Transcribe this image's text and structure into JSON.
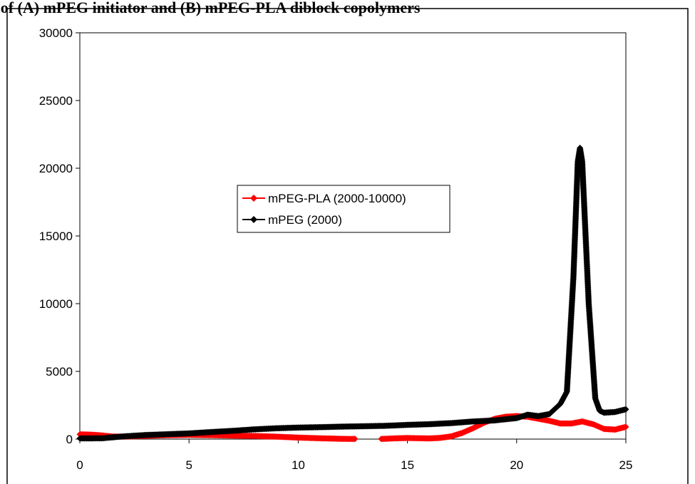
{
  "chart_data": {
    "type": "line",
    "title": "sis of (A) mPEG initiator and (B) mPEG-PLA diblock copolymers",
    "xlabel": "",
    "ylabel": "",
    "xlim": [
      0,
      25
    ],
    "ylim": [
      0,
      30000
    ],
    "xticks": [
      "0",
      "5",
      "10",
      "15",
      "20",
      "25"
    ],
    "yticks": [
      "0",
      "5000",
      "10000",
      "15000",
      "20000",
      "25000",
      "30000"
    ],
    "grid": false,
    "legend_position": "center",
    "series": [
      {
        "name": "mPEG-PLA (2000-10000)",
        "color": "#ff0000",
        "points": [
          [
            0,
            350
          ],
          [
            0.5,
            330
          ],
          [
            1,
            270
          ],
          [
            1.5,
            190
          ],
          [
            2,
            180
          ],
          [
            3,
            240
          ],
          [
            4,
            290
          ],
          [
            5,
            310
          ],
          [
            6,
            290
          ],
          [
            7,
            260
          ],
          [
            8,
            230
          ],
          [
            9,
            180
          ],
          [
            10,
            110
          ],
          [
            11,
            60
          ],
          [
            12,
            20
          ],
          [
            12.6,
            10
          ],
          [
            null,
            null
          ],
          [
            13.8,
            10
          ],
          [
            14.5,
            60
          ],
          [
            15,
            80
          ],
          [
            16,
            50
          ],
          [
            16.5,
            90
          ],
          [
            17,
            200
          ],
          [
            17.5,
            450
          ],
          [
            18,
            800
          ],
          [
            18.5,
            1200
          ],
          [
            19,
            1500
          ],
          [
            19.5,
            1650
          ],
          [
            20,
            1700
          ],
          [
            20.5,
            1650
          ],
          [
            21,
            1500
          ],
          [
            21.5,
            1350
          ],
          [
            22,
            1150
          ],
          [
            22.5,
            1150
          ],
          [
            23,
            1300
          ],
          [
            23.5,
            1100
          ],
          [
            24,
            750
          ],
          [
            24.5,
            700
          ],
          [
            25,
            900
          ]
        ]
      },
      {
        "name": "mPEG (2000)",
        "color": "#000000",
        "points": [
          [
            0,
            50
          ],
          [
            1,
            60
          ],
          [
            2,
            200
          ],
          [
            3,
            300
          ],
          [
            4,
            360
          ],
          [
            5,
            420
          ],
          [
            6,
            520
          ],
          [
            7,
            610
          ],
          [
            8,
            720
          ],
          [
            9,
            800
          ],
          [
            10,
            850
          ],
          [
            11,
            880
          ],
          [
            12,
            920
          ],
          [
            13,
            950
          ],
          [
            14,
            980
          ],
          [
            15,
            1050
          ],
          [
            16,
            1100
          ],
          [
            17,
            1180
          ],
          [
            18,
            1300
          ],
          [
            19,
            1380
          ],
          [
            20,
            1550
          ],
          [
            20.5,
            1800
          ],
          [
            21,
            1700
          ],
          [
            21.5,
            1850
          ],
          [
            22,
            2600
          ],
          [
            22.3,
            3500
          ],
          [
            22.6,
            12000
          ],
          [
            22.8,
            20500
          ],
          [
            22.9,
            21500
          ],
          [
            23,
            20500
          ],
          [
            23.3,
            10000
          ],
          [
            23.6,
            3000
          ],
          [
            23.8,
            2100
          ],
          [
            24,
            1950
          ],
          [
            24.5,
            2000
          ],
          [
            25,
            2200
          ]
        ]
      }
    ]
  }
}
